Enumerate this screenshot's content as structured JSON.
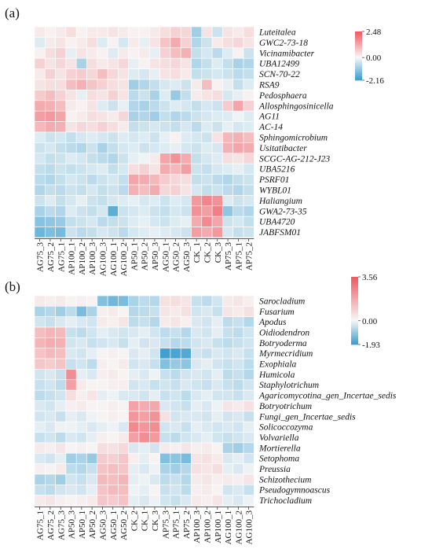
{
  "chart_data": [
    {
      "type": "heatmap",
      "panel_label": "(a)",
      "columns": [
        "AG75_3",
        "AG75_2",
        "AG75_1",
        "AP100_1",
        "AP100_2",
        "AP100_3",
        "AG100_3",
        "AG100_1",
        "AG100_2",
        "AP50_1",
        "AP50_2",
        "AP50_3",
        "AG50_1",
        "AG50_2",
        "AG50_3",
        "CK_1",
        "CK_2",
        "CK_3",
        "AP75_3",
        "AP75_1",
        "AP75_2"
      ],
      "rows": [
        "Luteitalea",
        "GWC2-73-18",
        "Vicinamibacter",
        "UBA12499",
        "SCN-70-22",
        "RSA9",
        "Pedosphaera",
        "Allosphingosinicella",
        "AG11",
        "AC-14",
        "Sphingomicrobium",
        "Usitatibacter",
        "SCGC-AG-212-J23",
        "UBA5216",
        "PSRF01",
        "WYBL01",
        "Haliangium",
        "GWA2-73-35",
        "UBA4720",
        "JABFSM01"
      ],
      "values": [
        [
          0.2,
          0.1,
          0.2,
          0.4,
          0.1,
          0.2,
          0.2,
          0.3,
          0.2,
          0.1,
          0.1,
          0.2,
          0.4,
          0.6,
          0.5,
          -1.0,
          0.3,
          -0.5,
          0.3,
          0.2,
          0.4
        ],
        [
          -0.3,
          0.2,
          0.3,
          0.1,
          0.2,
          0.4,
          -0.3,
          0.1,
          -0.4,
          0.2,
          -0.2,
          0.3,
          0.8,
          1.2,
          0.6,
          -0.8,
          -0.5,
          0.2,
          0.4,
          0.5,
          0.3
        ],
        [
          0.1,
          0.4,
          0.6,
          -0.2,
          0.3,
          0.2,
          0.1,
          -0.3,
          0.2,
          0.1,
          0.2,
          -0.2,
          0.6,
          0.9,
          1.1,
          -0.6,
          -0.4,
          -0.7,
          -0.3,
          0.1,
          -0.5
        ],
        [
          0.6,
          0.3,
          0.5,
          0.3,
          -0.9,
          0.4,
          0.2,
          0.3,
          0.5,
          -0.2,
          0.1,
          0.3,
          0.4,
          0.5,
          0.3,
          -0.8,
          -0.6,
          -0.3,
          -0.6,
          -0.9,
          -0.8
        ],
        [
          0.2,
          0.6,
          0.3,
          0.6,
          0.7,
          0.5,
          0.9,
          0.5,
          0.3,
          -0.3,
          -0.4,
          -0.2,
          0.3,
          0.4,
          0.2,
          -0.6,
          -0.5,
          -0.4,
          -0.5,
          -0.7,
          -0.6
        ],
        [
          0.3,
          0.4,
          0.4,
          0.9,
          1.1,
          0.8,
          0.6,
          0.4,
          0.3,
          -1.0,
          -0.8,
          -0.6,
          -0.4,
          -0.3,
          -0.5,
          0.2,
          0.9,
          0.1,
          -0.2,
          -0.6,
          -0.3
        ],
        [
          0.7,
          0.9,
          0.6,
          0.3,
          -0.2,
          0.4,
          0.3,
          0.6,
          0.3,
          -0.7,
          -0.5,
          -0.9,
          -0.3,
          -1.1,
          -0.6,
          0.2,
          0.3,
          0.4,
          -0.4,
          -0.2,
          0.1
        ],
        [
          1.2,
          1.1,
          0.9,
          0.2,
          0.1,
          0.3,
          -0.3,
          -0.5,
          -0.2,
          -0.8,
          -0.9,
          -0.7,
          -0.5,
          -0.3,
          -0.4,
          -0.6,
          -0.4,
          -0.5,
          0.7,
          1.3,
          0.6
        ],
        [
          1.4,
          1.5,
          1.3,
          0.1,
          0.2,
          0.4,
          0.3,
          0.2,
          0.5,
          -0.9,
          -0.8,
          -1.0,
          -0.6,
          -0.8,
          -0.7,
          -0.5,
          -0.4,
          -0.3,
          -0.3,
          -0.1,
          -0.3
        ],
        [
          1.0,
          1.2,
          1.1,
          0.3,
          0.5,
          0.4,
          0.6,
          0.4,
          0.2,
          -0.6,
          -0.5,
          -0.4,
          -0.5,
          -0.6,
          -0.4,
          -0.7,
          -0.3,
          -0.5,
          -0.2,
          -0.4,
          -0.3
        ],
        [
          -0.3,
          -0.5,
          -0.4,
          -0.6,
          -0.4,
          -0.3,
          -0.4,
          -0.5,
          -0.3,
          -0.4,
          -0.3,
          -0.5,
          -0.2,
          0.1,
          -0.3,
          -0.4,
          -0.5,
          0.3,
          1.0,
          1.1,
          0.9
        ],
        [
          -0.5,
          -0.4,
          -0.6,
          -0.7,
          -0.8,
          -0.5,
          -0.9,
          -0.6,
          -0.4,
          -0.3,
          -0.5,
          -0.4,
          -0.3,
          -0.2,
          -0.4,
          -0.5,
          -0.3,
          -0.4,
          1.1,
          1.3,
          1.2
        ],
        [
          -0.4,
          -0.6,
          -0.5,
          -0.3,
          -0.4,
          -0.6,
          -0.7,
          -0.8,
          -0.5,
          -0.2,
          -0.1,
          0.2,
          1.3,
          1.6,
          1.2,
          -0.6,
          -0.4,
          -0.3,
          0.4,
          0.3,
          0.5
        ],
        [
          -0.6,
          -0.7,
          -0.5,
          -0.6,
          -0.5,
          -0.4,
          -0.3,
          -0.6,
          -0.4,
          0.4,
          0.6,
          0.3,
          1.2,
          1.0,
          1.4,
          -0.5,
          -0.6,
          -0.4,
          -0.3,
          -0.2,
          -0.4
        ],
        [
          -0.7,
          -0.8,
          -0.6,
          -0.4,
          -0.5,
          -0.7,
          -0.5,
          -0.4,
          -0.6,
          1.3,
          1.2,
          1.0,
          0.7,
          0.5,
          0.4,
          -0.6,
          -0.5,
          -0.7,
          -0.8,
          -0.6,
          -0.5
        ],
        [
          -0.8,
          -0.6,
          -0.7,
          -0.5,
          -0.6,
          -0.4,
          -0.6,
          -0.5,
          -0.7,
          1.1,
          0.9,
          1.2,
          0.5,
          0.6,
          0.3,
          -0.4,
          -0.6,
          -0.5,
          -0.7,
          -0.8,
          -0.6
        ],
        [
          -0.5,
          -0.3,
          -0.6,
          -0.4,
          -0.2,
          -0.5,
          -0.6,
          -0.4,
          -0.3,
          -0.2,
          -0.4,
          -0.3,
          -0.5,
          -0.3,
          -0.4,
          1.5,
          1.8,
          1.6,
          -0.3,
          -0.5,
          -0.4
        ],
        [
          -0.9,
          -0.7,
          -0.8,
          -0.3,
          -0.5,
          -0.6,
          -0.4,
          -1.8,
          -0.5,
          -0.4,
          -0.3,
          -0.5,
          -0.6,
          -0.4,
          -0.5,
          1.6,
          1.4,
          1.9,
          -1.2,
          -0.7,
          -0.8
        ],
        [
          -1.3,
          -1.2,
          -1.1,
          -0.6,
          -0.5,
          -0.4,
          -0.7,
          -0.6,
          -0.5,
          -0.3,
          -0.2,
          -0.4,
          -0.5,
          -0.3,
          -0.2,
          1.2,
          1.7,
          1.3,
          -0.5,
          -0.4,
          -0.6
        ],
        [
          -1.6,
          -1.4,
          -1.5,
          -0.5,
          -0.7,
          -0.6,
          -0.4,
          -0.5,
          -0.7,
          -0.4,
          -0.3,
          -0.2,
          -0.3,
          -0.4,
          -0.5,
          1.4,
          1.2,
          1.5,
          -0.4,
          -0.6,
          -0.5
        ]
      ],
      "vmin": -2.16,
      "vmax": 2.48,
      "legend": {
        "max_label": "2.48",
        "mid_label": "0.00",
        "min_label": "-2.16",
        "placement": "top-right"
      },
      "colors": {
        "low": "#3d9fd1",
        "mid": "#f7f7f7",
        "high": "#f05a62"
      }
    },
    {
      "type": "heatmap",
      "panel_label": "(b)",
      "columns": [
        "AG75_1",
        "AG75_2",
        "AG75_3",
        "AP50_3",
        "AP50_1",
        "AP50_2",
        "AG50_3",
        "AG50_1",
        "AG50_2",
        "CK_2",
        "CK_1",
        "CK_3",
        "AP75_3",
        "AP75_1",
        "AP75_2",
        "AP100_3",
        "AP100_2",
        "AP100_1",
        "AG100_1",
        "AG100_2",
        "AG100_3"
      ],
      "rows": [
        "Sarocladium",
        "Fusarium",
        "Apodus",
        "Oidiodendron",
        "Botryoderma",
        "Myrmecridium",
        "Exophiala",
        "Humicola",
        "Staphylotrichum",
        "Agaricomycotina_gen_Incertae_sedis",
        "Botryotrichum",
        "Fungi_gen_Incertae_sedis",
        "Solicoccozyma",
        "Volvariella",
        "Mortierella",
        "Setophoma",
        "Preussia",
        "Schizothecium",
        "Pseudogymnoascus",
        "Trichocladium"
      ],
      "values": [
        [
          0.3,
          0.2,
          0.3,
          0.1,
          0.2,
          0.1,
          -1.2,
          -1.4,
          -1.3,
          -0.8,
          -0.6,
          -0.7,
          0.5,
          0.6,
          0.4,
          -0.5,
          -0.6,
          -0.4,
          0.3,
          0.4,
          0.2
        ],
        [
          -0.8,
          -0.7,
          -0.9,
          -0.6,
          -1.3,
          -0.8,
          0.2,
          0.3,
          0.1,
          -0.7,
          -0.6,
          -0.5,
          0.4,
          0.3,
          0.5,
          -0.4,
          -0.3,
          -0.5,
          0.4,
          0.3,
          0.5
        ],
        [
          -0.4,
          -0.5,
          -0.3,
          -0.2,
          -0.3,
          -0.4,
          0.3,
          0.2,
          0.4,
          -0.6,
          -0.5,
          -0.7,
          0.3,
          0.4,
          0.2,
          -0.3,
          -0.4,
          -0.2,
          -0.6,
          -0.5,
          -0.7
        ],
        [
          1.3,
          1.5,
          1.4,
          -0.5,
          -0.6,
          -0.4,
          -0.2,
          -0.3,
          -0.4,
          -0.3,
          -0.2,
          -0.4,
          -0.6,
          -0.5,
          -0.7,
          -0.3,
          -0.4,
          -0.2,
          -0.5,
          -0.6,
          -0.4
        ],
        [
          1.5,
          1.7,
          1.6,
          -0.4,
          -0.3,
          -0.5,
          -0.4,
          -0.3,
          -0.5,
          -0.2,
          -0.4,
          -0.3,
          -0.5,
          -0.7,
          -0.6,
          -0.4,
          -0.3,
          -0.5,
          -0.6,
          -0.5,
          -0.4
        ],
        [
          1.2,
          1.4,
          1.3,
          -0.3,
          -0.4,
          -0.2,
          0.1,
          0.2,
          0.1,
          -0.3,
          -0.2,
          -0.4,
          -1.9,
          -1.8,
          -1.7,
          -0.4,
          -0.5,
          -0.3,
          -0.4,
          -0.3,
          -0.5
        ],
        [
          1.1,
          1.0,
          1.2,
          -0.5,
          -0.4,
          -0.6,
          0.2,
          0.1,
          0.3,
          -0.4,
          -0.3,
          -0.5,
          -1.2,
          -1.0,
          -1.1,
          -0.3,
          -0.2,
          -0.4,
          -0.5,
          -0.4,
          -0.6
        ],
        [
          -0.4,
          -0.3,
          -0.5,
          2.4,
          -0.2,
          -0.3,
          0.2,
          0.3,
          0.1,
          -0.2,
          -0.3,
          -0.1,
          -0.5,
          -0.6,
          -0.4,
          -0.3,
          -0.4,
          -0.2,
          -0.6,
          -0.5,
          -0.7
        ],
        [
          -0.5,
          -0.4,
          -0.6,
          2.0,
          0.3,
          0.1,
          0.1,
          0.2,
          0.2,
          -0.4,
          -0.3,
          -0.5,
          -0.4,
          -0.5,
          -0.3,
          -0.4,
          -0.5,
          -0.3,
          -0.5,
          -0.6,
          -0.4
        ],
        [
          -0.6,
          -0.5,
          -0.4,
          0.6,
          0.2,
          0.4,
          -0.2,
          -0.1,
          -0.3,
          -0.3,
          -0.4,
          -0.2,
          -0.5,
          -0.4,
          -0.6,
          -0.3,
          -0.2,
          -0.4,
          -0.4,
          -0.5,
          -0.3
        ],
        [
          -0.3,
          -0.4,
          -0.2,
          0.2,
          0.3,
          0.1,
          0.1,
          0.2,
          0.1,
          1.9,
          1.7,
          1.8,
          -0.3,
          -0.4,
          -0.5,
          -0.2,
          -0.3,
          -0.1,
          0.4,
          0.3,
          0.5
        ],
        [
          -0.4,
          -0.3,
          -0.5,
          -0.2,
          -0.3,
          -0.1,
          0.1,
          0.2,
          0.1,
          2.2,
          2.0,
          2.3,
          0.5,
          -0.4,
          -0.3,
          -0.3,
          -0.4,
          -0.2,
          -0.4,
          -0.3,
          -0.5
        ],
        [
          -0.2,
          -0.3,
          -0.1,
          -0.1,
          -0.2,
          -0.3,
          -0.2,
          -0.1,
          -0.3,
          2.5,
          2.2,
          2.4,
          -0.4,
          -0.3,
          -0.5,
          -0.2,
          -0.3,
          -0.4,
          -0.3,
          -0.4,
          -0.2
        ],
        [
          -0.5,
          -0.4,
          -0.6,
          -0.3,
          -0.4,
          -0.2,
          0.2,
          0.1,
          0.3,
          2.0,
          2.4,
          2.1,
          -0.5,
          -0.6,
          -0.4,
          -0.3,
          -0.2,
          -0.4,
          -0.5,
          -0.4,
          -0.3
        ],
        [
          0.3,
          0.2,
          0.4,
          0.1,
          0.2,
          0.1,
          0.6,
          0.5,
          0.7,
          -0.3,
          -0.2,
          -0.4,
          0.3,
          0.2,
          0.4,
          0.2,
          0.3,
          0.1,
          -0.8,
          -0.9,
          -0.7
        ],
        [
          -0.3,
          -0.4,
          -0.2,
          -0.9,
          -0.8,
          -1.0,
          1.0,
          0.9,
          1.1,
          0.2,
          -0.2,
          0.1,
          -1.2,
          -1.1,
          -1.3,
          0.4,
          0.5,
          0.3,
          -0.3,
          -0.2,
          -0.4
        ],
        [
          0.2,
          0.1,
          0.3,
          -0.6,
          -0.7,
          -0.5,
          1.2,
          1.3,
          1.1,
          -0.2,
          -0.3,
          -0.1,
          -0.8,
          -0.9,
          -0.7,
          0.5,
          0.4,
          0.6,
          -0.2,
          -0.3,
          -0.1
        ],
        [
          -0.8,
          -0.7,
          -0.9,
          -0.4,
          -0.5,
          -0.3,
          1.4,
          1.3,
          1.5,
          -0.2,
          -0.1,
          -0.3,
          -0.6,
          -0.5,
          -0.7,
          0.3,
          0.4,
          0.2,
          0.3,
          0.2,
          0.4
        ],
        [
          -0.5,
          -0.6,
          -0.4,
          -0.3,
          -0.4,
          -0.2,
          1.2,
          1.4,
          1.3,
          -0.1,
          -0.2,
          0.1,
          -0.5,
          -0.4,
          -0.6,
          0.2,
          0.3,
          0.1,
          -0.4,
          -0.3,
          -0.5
        ],
        [
          0.3,
          0.4,
          0.2,
          0.1,
          0.2,
          0.3,
          1.1,
          1.0,
          1.2,
          -0.2,
          -0.3,
          -0.1,
          -0.4,
          -0.5,
          -0.3,
          0.3,
          0.2,
          0.4,
          -0.2,
          -0.3,
          -0.1
        ]
      ],
      "vmin": -1.93,
      "vmax": 3.56,
      "legend": {
        "max_label": "3.56",
        "mid_label": "0.00",
        "min_label": "-1.93",
        "placement": "top-right"
      },
      "colors": {
        "low": "#3d9fd1",
        "mid": "#f7f7f7",
        "high": "#f05a62"
      }
    }
  ]
}
